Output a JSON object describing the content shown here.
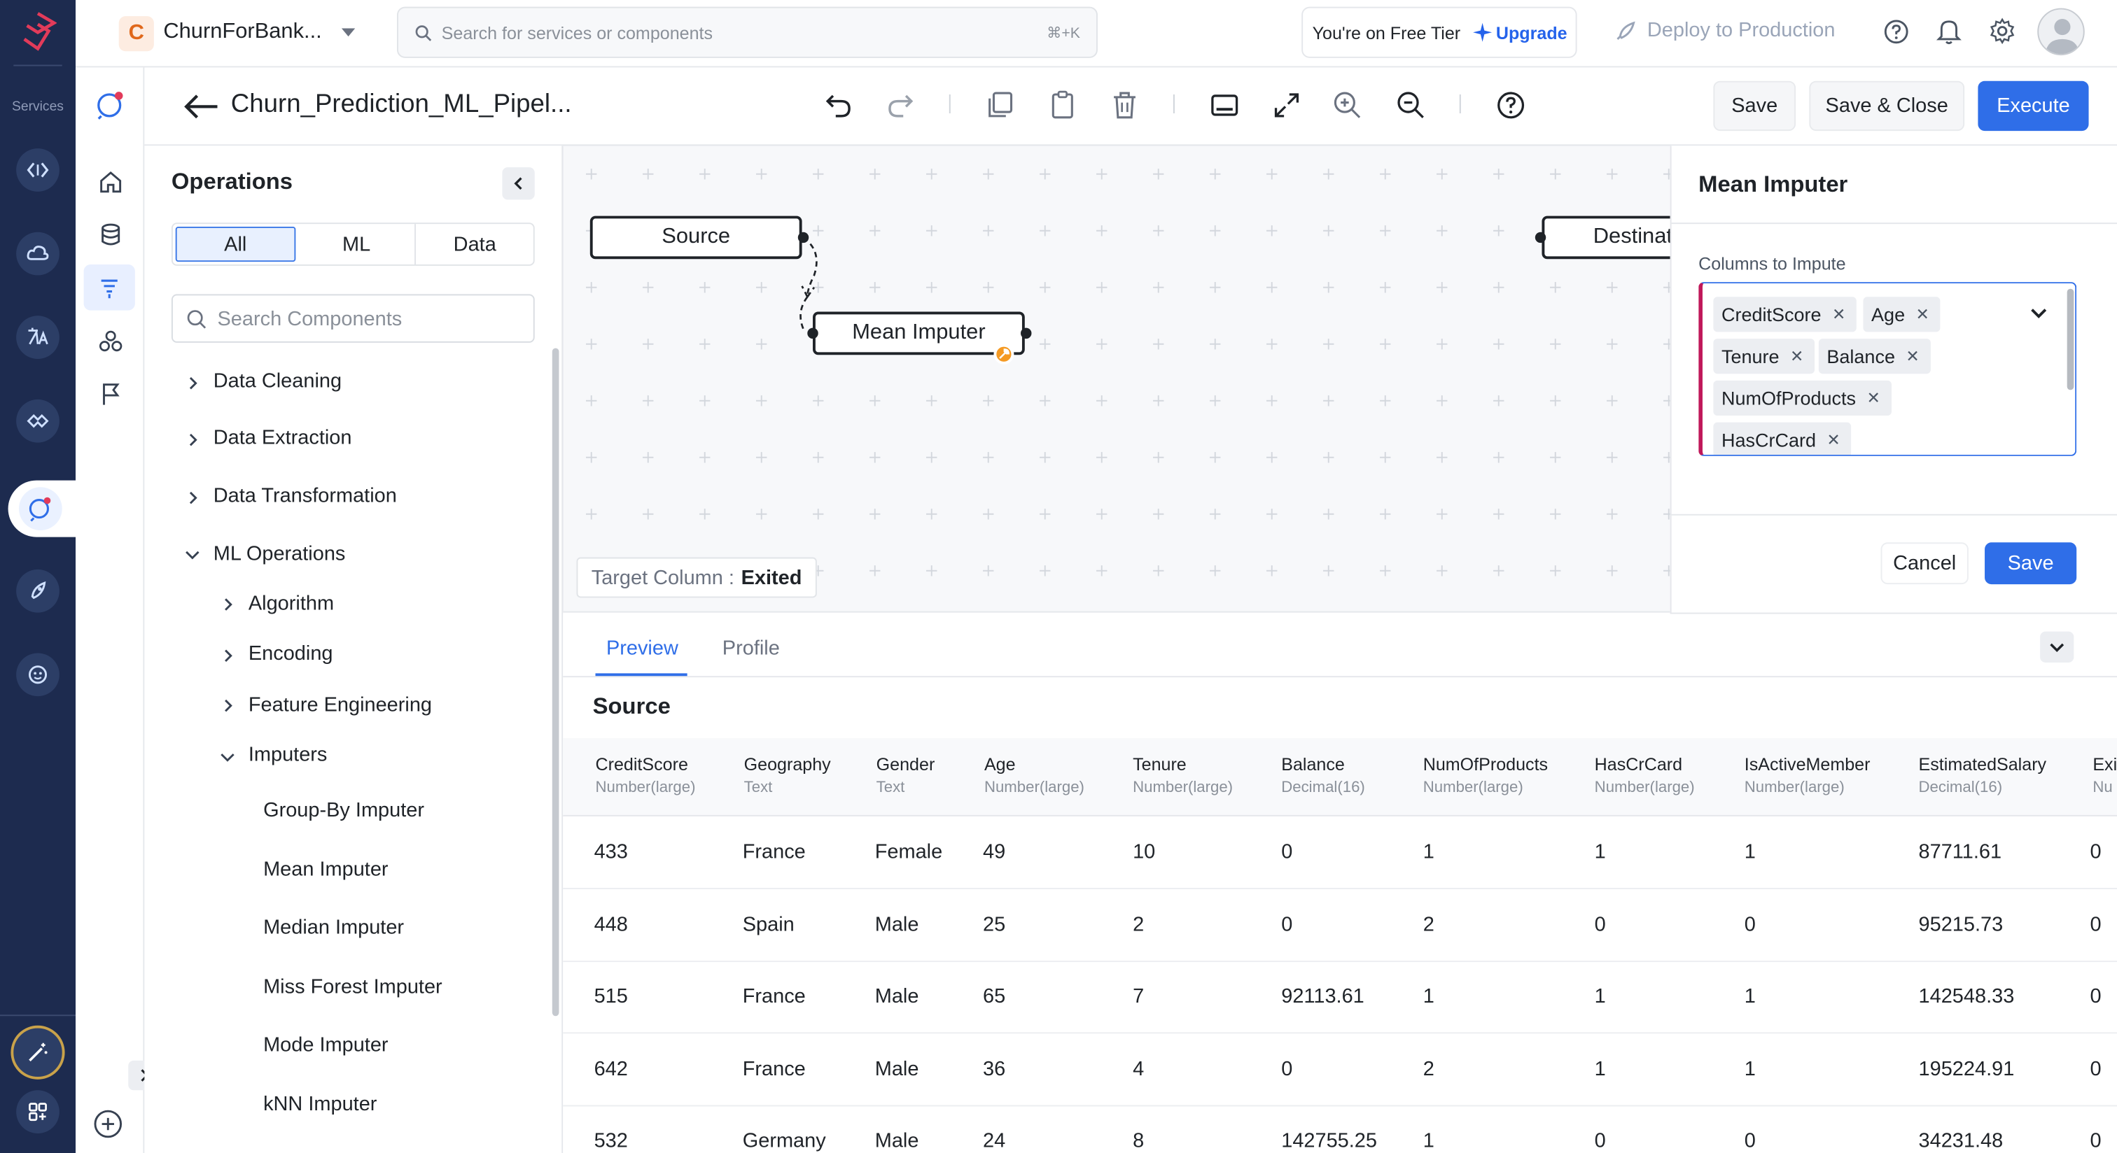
{
  "rail": {
    "label": "Services"
  },
  "topbar": {
    "project_initial": "C",
    "project_name": "ChurnForBank...",
    "search_placeholder": "Search for services or components",
    "search_shortcut": "⌘+K",
    "tier_text": "You're on Free Tier",
    "upgrade_label": "Upgrade",
    "deploy_label": "Deploy to Production"
  },
  "toolbar": {
    "pipeline_title": "Churn_Prediction_ML_Pipel...",
    "save_label": "Save",
    "save_close_label": "Save & Close",
    "execute_label": "Execute"
  },
  "operations": {
    "title": "Operations",
    "filters": [
      "All",
      "ML",
      "Data"
    ],
    "active_filter": "All",
    "search_placeholder": "Search Components",
    "tree": [
      {
        "label": "Data Cleaning",
        "level": 0,
        "state": "collapsed"
      },
      {
        "label": "Data Extraction",
        "level": 0,
        "state": "collapsed"
      },
      {
        "label": "Data Transformation",
        "level": 0,
        "state": "collapsed"
      },
      {
        "label": "ML Operations",
        "level": 0,
        "state": "expanded"
      },
      {
        "label": "Algorithm",
        "level": 1,
        "state": "collapsed"
      },
      {
        "label": "Encoding",
        "level": 1,
        "state": "collapsed"
      },
      {
        "label": "Feature Engineering",
        "level": 1,
        "state": "collapsed"
      },
      {
        "label": "Imputers",
        "level": 1,
        "state": "expanded"
      },
      {
        "label": "Group-By Imputer",
        "level": 2,
        "state": "leaf"
      },
      {
        "label": "Mean Imputer",
        "level": 2,
        "state": "leaf"
      },
      {
        "label": "Median Imputer",
        "level": 2,
        "state": "leaf"
      },
      {
        "label": "Miss Forest Imputer",
        "level": 2,
        "state": "leaf"
      },
      {
        "label": "Mode Imputer",
        "level": 2,
        "state": "leaf"
      },
      {
        "label": "kNN Imputer",
        "level": 2,
        "state": "leaf"
      }
    ]
  },
  "canvas": {
    "nodes": {
      "source": "Source",
      "mean_imputer": "Mean Imputer",
      "destination": "Destinat"
    },
    "target_label": "Target Column :",
    "target_value": "Exited"
  },
  "config_panel": {
    "title": "Mean Imputer",
    "columns_label": "Columns to Impute",
    "selected_columns": [
      "CreditScore",
      "Age",
      "Tenure",
      "Balance",
      "NumOfProducts",
      "HasCrCard"
    ],
    "cancel_label": "Cancel",
    "save_label": "Save"
  },
  "preview": {
    "tabs": [
      "Preview",
      "Profile"
    ],
    "active_tab": "Preview",
    "section_title": "Source",
    "columns": [
      {
        "name": "CreditScore",
        "type": "Number(large)"
      },
      {
        "name": "Geography",
        "type": "Text"
      },
      {
        "name": "Gender",
        "type": "Text"
      },
      {
        "name": "Age",
        "type": "Number(large)"
      },
      {
        "name": "Tenure",
        "type": "Number(large)"
      },
      {
        "name": "Balance",
        "type": "Decimal(16)"
      },
      {
        "name": "NumOfProducts",
        "type": "Number(large)"
      },
      {
        "name": "HasCrCard",
        "type": "Number(large)"
      },
      {
        "name": "IsActiveMember",
        "type": "Number(large)"
      },
      {
        "name": "EstimatedSalary",
        "type": "Decimal(16)"
      },
      {
        "name": "Exi",
        "type": "Nu"
      }
    ],
    "rows": [
      [
        "433",
        "France",
        "Female",
        "49",
        "10",
        "0",
        "1",
        "1",
        "1",
        "87711.61",
        "0"
      ],
      [
        "448",
        "Spain",
        "Male",
        "25",
        "2",
        "0",
        "2",
        "0",
        "0",
        "95215.73",
        "0"
      ],
      [
        "515",
        "France",
        "Male",
        "65",
        "7",
        "92113.61",
        "1",
        "1",
        "1",
        "142548.33",
        "0"
      ],
      [
        "642",
        "France",
        "Male",
        "36",
        "4",
        "0",
        "2",
        "1",
        "1",
        "195224.91",
        "0"
      ],
      [
        "532",
        "Germany",
        "Male",
        "24",
        "8",
        "142755.25",
        "1",
        "0",
        "0",
        "34231.48",
        "0"
      ]
    ]
  },
  "colors": {
    "rail_bg": "#1d2b4f",
    "accent_blue": "#2f6ee8",
    "warn_orange": "#f59a23",
    "project_orange": "#e0681b"
  }
}
